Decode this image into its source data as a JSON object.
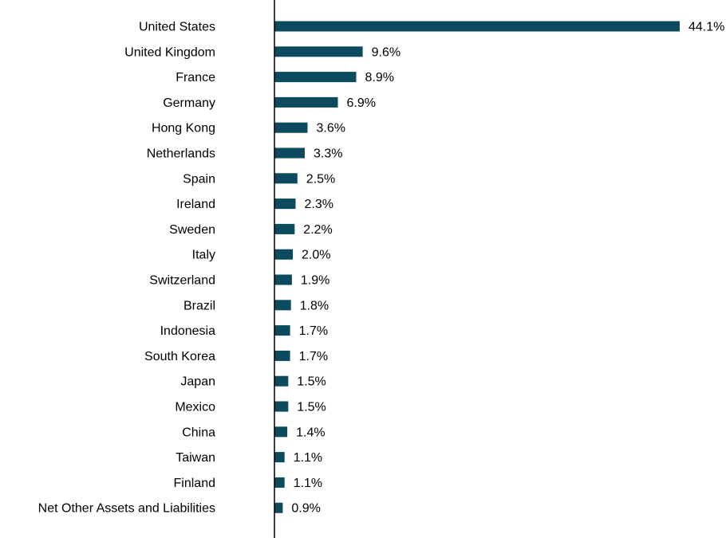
{
  "chart_data": {
    "type": "bar",
    "orientation": "horizontal",
    "title": "",
    "xlabel": "",
    "ylabel": "",
    "grid": false,
    "legend": "none",
    "bar_color": "#0b4a5f",
    "xlim": [
      0,
      44.1
    ],
    "categories": [
      "United States",
      "United Kingdom",
      "France",
      "Germany",
      "Hong Kong",
      "Netherlands",
      "Spain",
      "Ireland",
      "Sweden",
      "Italy",
      "Switzerland",
      "Brazil",
      "Indonesia",
      "South Korea",
      "Japan",
      "Mexico",
      "China",
      "Taiwan",
      "Finland",
      "Net Other Assets and Liabilities"
    ],
    "values": [
      44.1,
      9.6,
      8.9,
      6.9,
      3.6,
      3.3,
      2.5,
      2.3,
      2.2,
      2.0,
      1.9,
      1.8,
      1.7,
      1.7,
      1.5,
      1.5,
      1.4,
      1.1,
      1.1,
      0.9
    ],
    "value_labels": [
      "44.1%",
      "9.6%",
      "8.9%",
      "6.9%",
      "3.6%",
      "3.3%",
      "2.5%",
      "2.3%",
      "2.2%",
      "2.0%",
      "1.9%",
      "1.8%",
      "1.7%",
      "1.7%",
      "1.5%",
      "1.5%",
      "1.4%",
      "1.1%",
      "1.1%",
      "0.9%"
    ]
  }
}
